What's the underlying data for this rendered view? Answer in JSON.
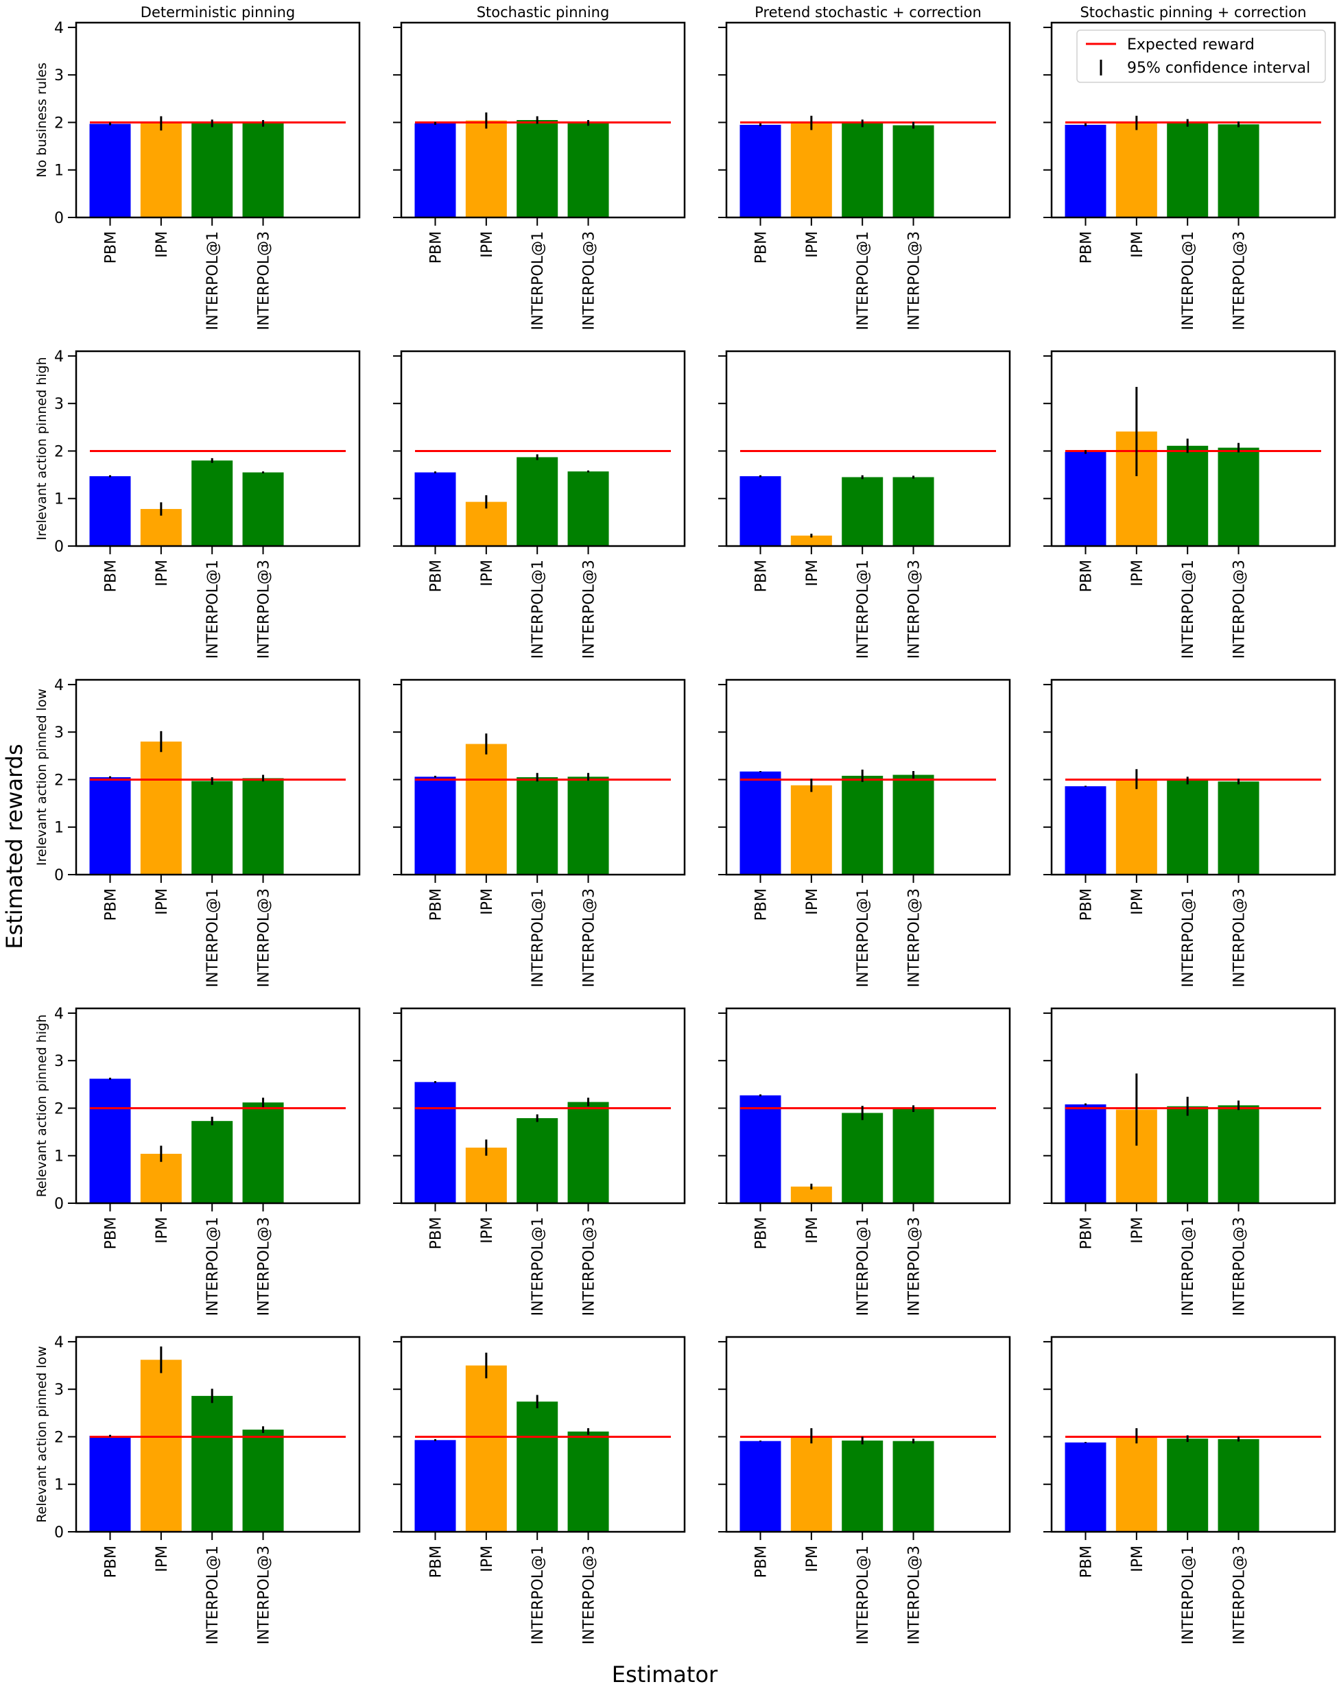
{
  "figure": {
    "xlabel": "Estimator",
    "ylabel": "Estimated rewards",
    "column_titles": [
      "Deterministic pinning",
      "Stochastic pinning",
      "Pretend stochastic + correction",
      "Stochastic pinning + correction"
    ],
    "row_labels": [
      "No business rules",
      "Irelevant action pinned high",
      "Irelevant action pinned low",
      "Relevant action pinned high",
      "Relevant action pinned low"
    ],
    "legend": {
      "placement": "top-right of last column, first row",
      "entries": [
        {
          "label": "Expected reward",
          "kind": "line",
          "color": "#ff0000"
        },
        {
          "label": "95% confidence interval",
          "kind": "errorbar",
          "color": "#000000"
        }
      ]
    },
    "colors": {
      "PBM": "#0000ff",
      "IPM": "#ffa500",
      "INTERPOL@1": "#008000",
      "INTERPOL@3": "#008000",
      "expected": "#ff0000",
      "ci": "#000000"
    }
  },
  "chart_data": {
    "type": "bar",
    "layout": "5 rows x 4 columns grid of bar charts with error bars",
    "categories": [
      "PBM",
      "IPM",
      "INTERPOL@1",
      "INTERPOL@3"
    ],
    "ylim": [
      0,
      4.1
    ],
    "yticks": [
      0,
      1,
      2,
      3,
      4
    ],
    "expected_reward": 2,
    "grid": false,
    "panels": [
      [
        {
          "values": [
            1.97,
            1.98,
            1.98,
            1.98
          ],
          "ci": [
            0.03,
            0.15,
            0.08,
            0.07
          ]
        },
        {
          "values": [
            1.98,
            2.04,
            2.05,
            1.99
          ],
          "ci": [
            0.03,
            0.17,
            0.08,
            0.06
          ]
        },
        {
          "values": [
            1.95,
            1.99,
            1.98,
            1.94
          ],
          "ci": [
            0.03,
            0.15,
            0.08,
            0.07
          ]
        },
        {
          "values": [
            1.95,
            1.99,
            1.99,
            1.96
          ],
          "ci": [
            0.03,
            0.15,
            0.08,
            0.06
          ]
        }
      ],
      [
        {
          "values": [
            1.47,
            0.78,
            1.8,
            1.55
          ],
          "ci": [
            0.02,
            0.14,
            0.05,
            0.02
          ]
        },
        {
          "values": [
            1.55,
            0.93,
            1.87,
            1.57
          ],
          "ci": [
            0.02,
            0.14,
            0.06,
            0.02
          ]
        },
        {
          "values": [
            1.47,
            0.22,
            1.45,
            1.45
          ],
          "ci": [
            0.02,
            0.04,
            0.04,
            0.03
          ]
        },
        {
          "values": [
            1.98,
            2.41,
            2.11,
            2.07
          ],
          "ci": [
            0.04,
            0.94,
            0.15,
            0.1
          ]
        }
      ],
      [
        {
          "values": [
            2.05,
            2.8,
            1.97,
            2.03
          ],
          "ci": [
            0.02,
            0.22,
            0.08,
            0.07
          ]
        },
        {
          "values": [
            2.06,
            2.75,
            2.05,
            2.06
          ],
          "ci": [
            0.02,
            0.22,
            0.09,
            0.08
          ]
        },
        {
          "values": [
            2.17,
            1.88,
            2.08,
            2.1
          ],
          "ci": [
            0.01,
            0.14,
            0.13,
            0.08
          ]
        },
        {
          "values": [
            1.86,
            2.01,
            1.98,
            1.96
          ],
          "ci": [
            0.01,
            0.21,
            0.08,
            0.06
          ]
        }
      ],
      [
        {
          "values": [
            2.62,
            1.04,
            1.73,
            2.12
          ],
          "ci": [
            0.02,
            0.17,
            0.09,
            0.1
          ]
        },
        {
          "values": [
            2.55,
            1.17,
            1.79,
            2.13
          ],
          "ci": [
            0.02,
            0.17,
            0.08,
            0.09
          ]
        },
        {
          "values": [
            2.27,
            0.35,
            1.9,
            1.99
          ],
          "ci": [
            0.02,
            0.06,
            0.15,
            0.07
          ]
        },
        {
          "values": [
            2.08,
            1.97,
            2.04,
            2.06
          ],
          "ci": [
            0.02,
            0.76,
            0.2,
            0.1
          ]
        }
      ],
      [
        {
          "values": [
            2.02,
            3.62,
            2.86,
            2.15
          ],
          "ci": [
            0.02,
            0.28,
            0.15,
            0.07
          ]
        },
        {
          "values": [
            1.93,
            3.5,
            2.74,
            2.11
          ],
          "ci": [
            0.02,
            0.27,
            0.14,
            0.07
          ]
        },
        {
          "values": [
            1.91,
            2.02,
            1.92,
            1.91
          ],
          "ci": [
            0.01,
            0.16,
            0.08,
            0.05
          ]
        },
        {
          "values": [
            1.88,
            2.02,
            1.96,
            1.95
          ],
          "ci": [
            0.01,
            0.16,
            0.07,
            0.05
          ]
        }
      ]
    ]
  }
}
